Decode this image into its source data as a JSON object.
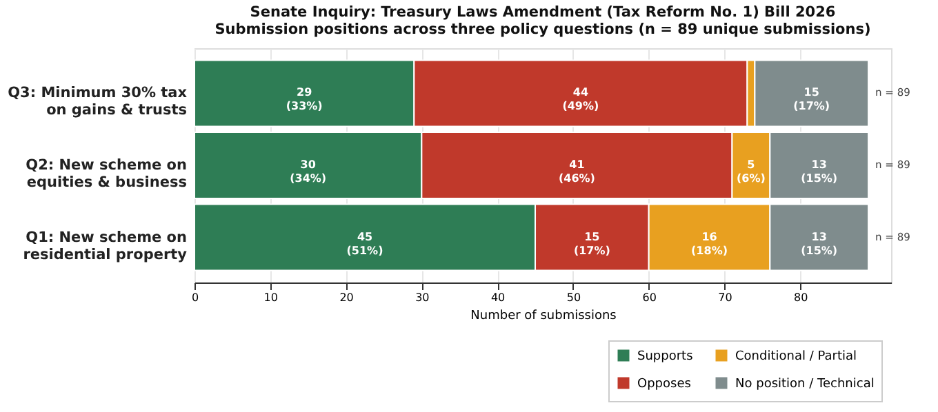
{
  "chart_data": {
    "type": "bar",
    "orientation": "horizontal",
    "stacked": true,
    "title": "Senate Inquiry: Treasury Laws Amendment (Tax Reform No. 1) Bill 2026",
    "subtitle": "Submission positions across three policy questions  (n = 89 unique submissions)",
    "xlabel": "Number of submissions",
    "categories": [
      "Q3: Minimum 30% tax\non gains & trusts",
      "Q2: New scheme on\nequities & business",
      "Q1: New scheme on\nresidential property"
    ],
    "series": [
      {
        "name": "Supports",
        "color": "#2e7d55",
        "values": [
          29,
          30,
          45
        ],
        "value_labels": [
          "29\n(33%)",
          "30\n(34%)",
          "45\n(51%)"
        ]
      },
      {
        "name": "Opposes",
        "color": "#c0392b",
        "values": [
          44,
          41,
          15
        ],
        "value_labels": [
          "44\n(49%)",
          "41\n(46%)",
          "15\n(17%)"
        ]
      },
      {
        "name": "Conditional / Partial",
        "color": "#e8a020",
        "values": [
          1,
          5,
          16
        ],
        "value_labels": [
          null,
          "5\n(6%)",
          "16\n(18%)"
        ]
      },
      {
        "name": "No position / Technical",
        "color": "#7f8c8d",
        "values": [
          15,
          13,
          13
        ],
        "value_labels": [
          "15\n(17%)",
          "13\n(15%)",
          "13\n(15%)"
        ]
      }
    ],
    "annotations": [
      "n = 89",
      "n = 89",
      "n = 89"
    ],
    "xlim": [
      0,
      92
    ],
    "xticks": [
      0,
      10,
      20,
      30,
      40,
      50,
      60,
      70,
      80
    ],
    "grid": "x",
    "legend": "bottom right"
  }
}
